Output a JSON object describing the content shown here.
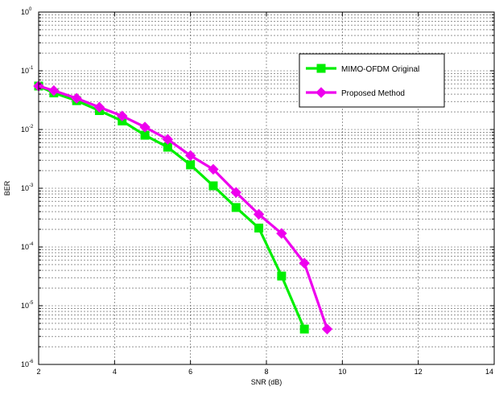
{
  "chart_data": {
    "type": "line",
    "title": "",
    "xlabel": "SNR (dB)",
    "ylabel": "BER",
    "xlim": [
      2,
      14
    ],
    "ylim": [
      1e-06,
      1
    ],
    "yscale": "log",
    "grid": true,
    "legend_position": "top-right",
    "x_ticks": [
      "2",
      "4",
      "6",
      "8",
      "10",
      "12",
      "14"
    ],
    "y_ticks": [
      {
        "base": "10",
        "exp": "0"
      },
      {
        "base": "10",
        "exp": "-1"
      },
      {
        "base": "10",
        "exp": "-2"
      },
      {
        "base": "10",
        "exp": "-3"
      },
      {
        "base": "10",
        "exp": "-4"
      },
      {
        "base": "10",
        "exp": "-5"
      },
      {
        "base": "10",
        "exp": "-6"
      }
    ],
    "series": [
      {
        "name": "MIMO-OFDM Original",
        "color": "#00ee00",
        "marker": "square",
        "x": [
          2.0,
          2.4,
          3.0,
          3.6,
          4.2,
          4.8,
          5.4,
          6.0,
          6.6,
          7.2,
          7.8,
          8.4,
          9.0
        ],
        "y": [
          0.055,
          0.042,
          0.031,
          0.021,
          0.014,
          0.008,
          0.005,
          0.0025,
          0.0011,
          0.00047,
          0.00021,
          3.2e-05,
          4e-06
        ]
      },
      {
        "name": "Proposed Method",
        "color": "#ee00ee",
        "marker": "diamond",
        "x": [
          2.0,
          2.4,
          3.0,
          3.6,
          4.2,
          4.8,
          5.4,
          6.0,
          6.6,
          7.2,
          7.8,
          8.4,
          9.0,
          9.6
        ],
        "y": [
          0.055,
          0.046,
          0.034,
          0.024,
          0.017,
          0.011,
          0.0068,
          0.0036,
          0.0021,
          0.00085,
          0.00036,
          0.00017,
          5.3e-05,
          4e-06
        ]
      }
    ]
  }
}
